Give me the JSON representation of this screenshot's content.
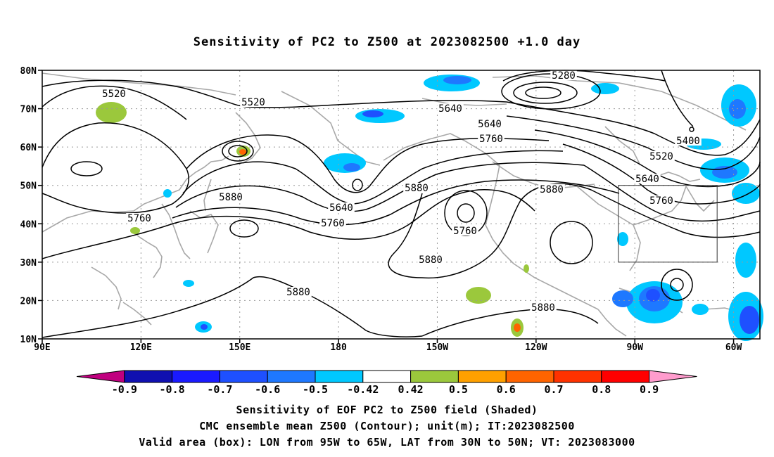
{
  "title": "Sensitivity of PC2 to Z500 at 2023082500 +1.0 day",
  "axes": {
    "lat_labels": [
      "80N",
      "70N",
      "60N",
      "50N",
      "40N",
      "30N",
      "20N",
      "10N"
    ],
    "lon_labels": [
      "90E",
      "120E",
      "150E",
      "180",
      "150W",
      "120W",
      "90W",
      "60W"
    ]
  },
  "map": {
    "lon_range": [
      90,
      308
    ],
    "lat_range": [
      10,
      80
    ],
    "grid": true,
    "valid_box": {
      "lon_w": -95,
      "lon_e": -65,
      "lat_s": 30,
      "lat_n": 50
    }
  },
  "contour_labels": [
    "5280",
    "5400",
    "5520",
    "5520",
    "5520",
    "5640",
    "5640",
    "5640",
    "5640",
    "5760",
    "5760",
    "5760",
    "5760",
    "5760",
    "5880",
    "5880",
    "5880",
    "5880",
    "5880",
    "5880"
  ],
  "colorbar": {
    "labels": [
      "-0.9",
      "-0.8",
      "-0.7",
      "-0.6",
      "-0.5",
      "-0.42",
      "0.42",
      "0.5",
      "0.6",
      "0.7",
      "0.8",
      "0.9"
    ],
    "colors": [
      "#c0007f",
      "#1010b0",
      "#1a1aff",
      "#1e50ff",
      "#1e78ff",
      "#00c8ff",
      "#ffffff",
      "#9bc83c",
      "#ffa000",
      "#ff6400",
      "#ff3200",
      "#ff0000",
      "#ff9ccd"
    ]
  },
  "captions": {
    "line1": "Sensitivity of EOF PC2 to Z500 field (Shaded)",
    "line2": "CMC ensemble mean Z500 (Contour); unit(m); IT:2023082500",
    "line3": "Valid area (box): LON from 95W to 65W, LAT from 30N to 50N; VT: 2023083000"
  }
}
